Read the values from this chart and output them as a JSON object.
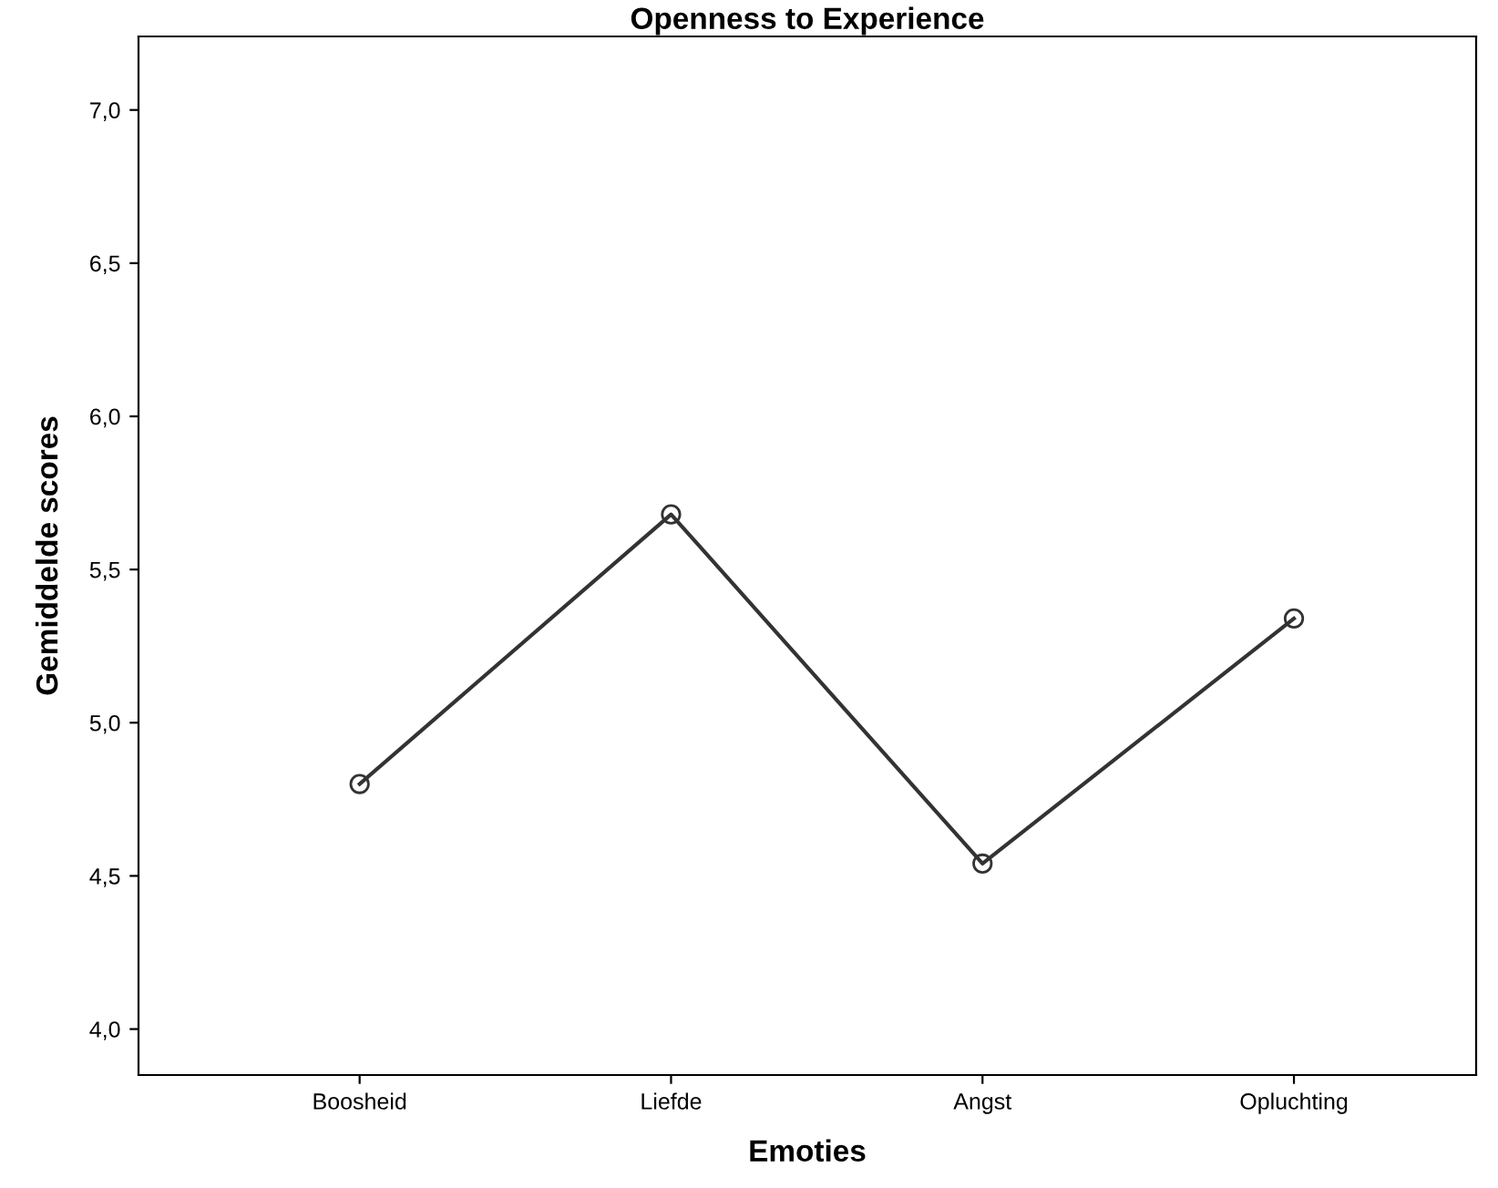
{
  "chart_data": {
    "type": "line",
    "title": "Openness to Experience",
    "xlabel": "Emoties",
    "ylabel": "Gemiddelde scores",
    "categories": [
      "Boosheid",
      "Liefde",
      "Angst",
      "Opluchting"
    ],
    "series": [
      {
        "color": "#333333",
        "values": [
          4.8,
          5.68,
          4.54,
          5.34
        ]
      }
    ],
    "ylim": [
      3.85,
      7.24
    ],
    "yticks": [
      {
        "value": 4.0,
        "label": "4,0"
      },
      {
        "value": 4.5,
        "label": "4,5"
      },
      {
        "value": 5.0,
        "label": "5,0"
      },
      {
        "value": 5.5,
        "label": "5,5"
      },
      {
        "value": 6.0,
        "label": "6,0"
      },
      {
        "value": 6.5,
        "label": "6,5"
      },
      {
        "value": 7.0,
        "label": "7,0"
      }
    ],
    "marker": "circle",
    "line_style": "solid",
    "grid": false,
    "legend": false
  }
}
